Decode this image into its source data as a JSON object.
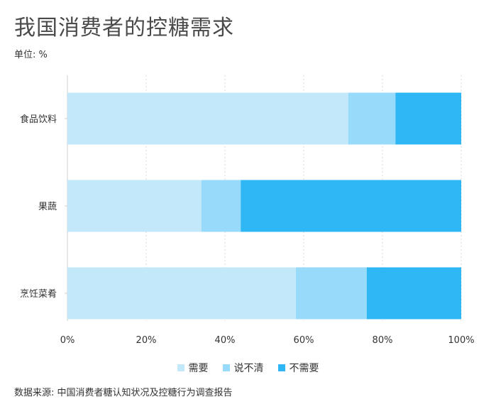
{
  "title": "我国消费者的控糖需求",
  "unit_label": "单位: %",
  "source": "数据来源: 中国消费者糖认知状况及控糖行为调查报告",
  "chart_data": {
    "type": "bar",
    "orientation": "horizontal",
    "stacked": true,
    "categories": [
      "食品饮料",
      "果蔬",
      "烹饪菜肴"
    ],
    "series": [
      {
        "name": "需要",
        "color": "#c3e8fa",
        "values": [
          71.3,
          34.0,
          58.0
        ]
      },
      {
        "name": "说不清",
        "color": "#97dafa",
        "values": [
          12.0,
          10.0,
          18.0
        ]
      },
      {
        "name": "不需要",
        "color": "#2fb6f4",
        "values": [
          16.7,
          56.0,
          24.0
        ]
      }
    ],
    "xlim": [
      0,
      100
    ],
    "xticks": [
      "0%",
      "20%",
      "40%",
      "60%",
      "80%",
      "100%"
    ],
    "grid": true,
    "legend": "bottom"
  }
}
